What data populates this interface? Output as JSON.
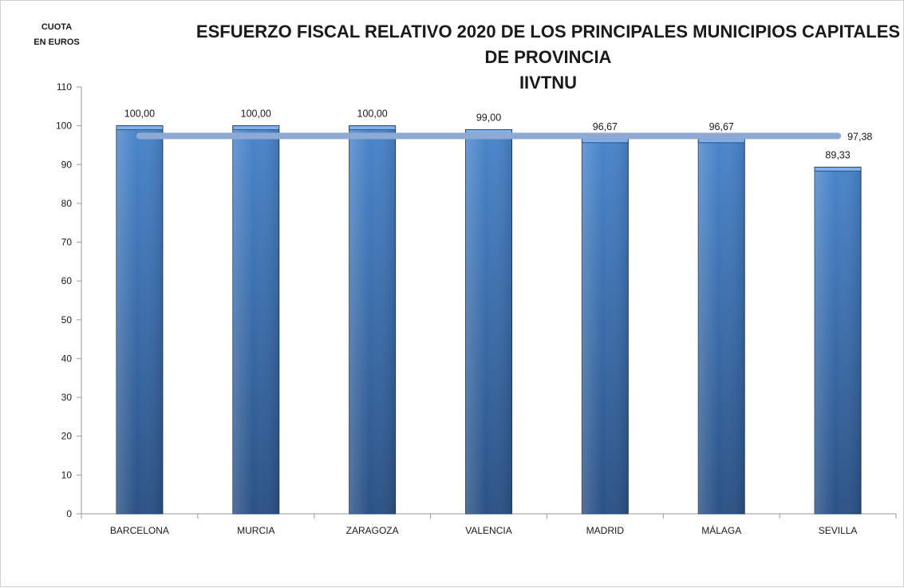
{
  "chart_data": {
    "type": "bar",
    "title_lines": [
      "ESFUERZO FISCAL RELATIVO 2020 DE LOS PRINCIPALES MUNICIPIOS CAPITALES",
      "DE PROVINCIA",
      "IIVTNU"
    ],
    "ylabel_lines": [
      "CUOTA",
      "EN EUROS"
    ],
    "xlabel": "",
    "categories": [
      "BARCELONA",
      "MURCIA",
      "ZARAGOZA",
      "VALENCIA",
      "MADRID",
      "MÁLAGA",
      "SEVILLA"
    ],
    "values": [
      100.0,
      100.0,
      100.0,
      99.0,
      96.67,
      96.67,
      89.33
    ],
    "value_labels": [
      "100,00",
      "100,00",
      "100,00",
      "99,00",
      "96,67",
      "96,67",
      "89,33"
    ],
    "average": {
      "value": 97.38,
      "label": "97,38",
      "color": "#8eaad4"
    },
    "ylim": [
      0,
      110
    ],
    "yticks": [
      0,
      10,
      20,
      30,
      40,
      50,
      60,
      70,
      80,
      90,
      100,
      110
    ],
    "grid": false,
    "legend": "none",
    "colors": {
      "bar_light": "#4a86cc",
      "bar_dark": "#2b5286",
      "bar_edge": "#1f3f6e",
      "bar_top": "#7fb0ea",
      "axis": "#9a9a9a"
    }
  }
}
